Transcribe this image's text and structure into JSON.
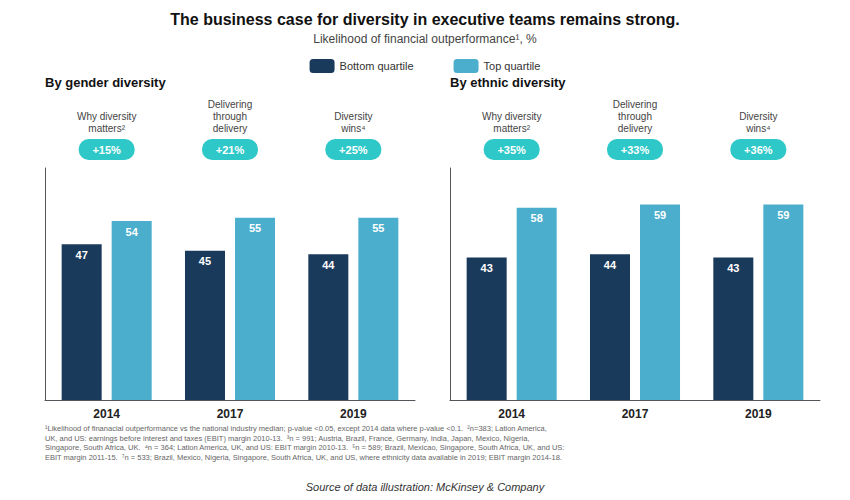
{
  "chart_data": {
    "type": "bar",
    "title": "The business case for diversity in executive teams remains strong.",
    "subtitle": "Likelihood of financial outperformance¹, %",
    "ylim": [
      0,
      70
    ],
    "grid": false,
    "legend": "top",
    "data_labels": true,
    "tick_labels": "x",
    "panels": [
      {
        "title": "By gender diversity",
        "categories": [
          "2014",
          "2017",
          "2019"
        ],
        "column_labels": [
          "Why diversity\nmatters²",
          "Delivering\nthrough\ndelivery",
          "Diversity\nwins⁴"
        ],
        "badges": [
          "+15%",
          "+21%",
          "+25%"
        ],
        "series": [
          {
            "name": "Bottom quartile",
            "color": "#1a3a5c",
            "values": [
              47,
              45,
              44
            ]
          },
          {
            "name": "Top quartile",
            "color": "#4aaecc",
            "values": [
              54,
              55,
              55
            ]
          }
        ]
      },
      {
        "title": "By ethnic diversity",
        "categories": [
          "2014",
          "2017",
          "2019"
        ],
        "column_labels": [
          "Why diversity\nmatters²",
          "Delivering\nthrough\ndelivery",
          "Diversity\nwins⁴"
        ],
        "badges": [
          "+35%",
          "+33%",
          "+36%"
        ],
        "series": [
          {
            "name": "Bottom quartile",
            "color": "#1a3a5c",
            "values": [
              43,
              44,
              43
            ]
          },
          {
            "name": "Top quartile",
            "color": "#4aaecc",
            "values": [
              58,
              59,
              59
            ]
          }
        ]
      }
    ],
    "footnotes": [
      "¹Likelihood of finanacial outperformance vs the national industry median; p-value <0.05, except 2014 data where p-value <0.1.  ²n=383; Lation America,",
      "UK, and US: earnings before interest and taxes (EBIT) margin 2010-13.  ³n = 991; Austria, Brazil, France, Germany, India, Japan, Mexico, Nigeria,",
      "Singapore, South Africa, UK.  ⁴n = 364; Lation America, UK, and US: EBIT margin 2010-13.  ⁵n = 589; Brazil, Mexicao, Singapore, South Africa, UK, and US:",
      "EBIT margin 2011-15.  ⁷n = 533; Brazil, Mexico, Nigeria, Singapore, South Africa, UK, and US, where ethnicity data available in 2019; EBIT margin 2014-18."
    ],
    "source": "Source of data illustration: McKinsey & Company"
  }
}
